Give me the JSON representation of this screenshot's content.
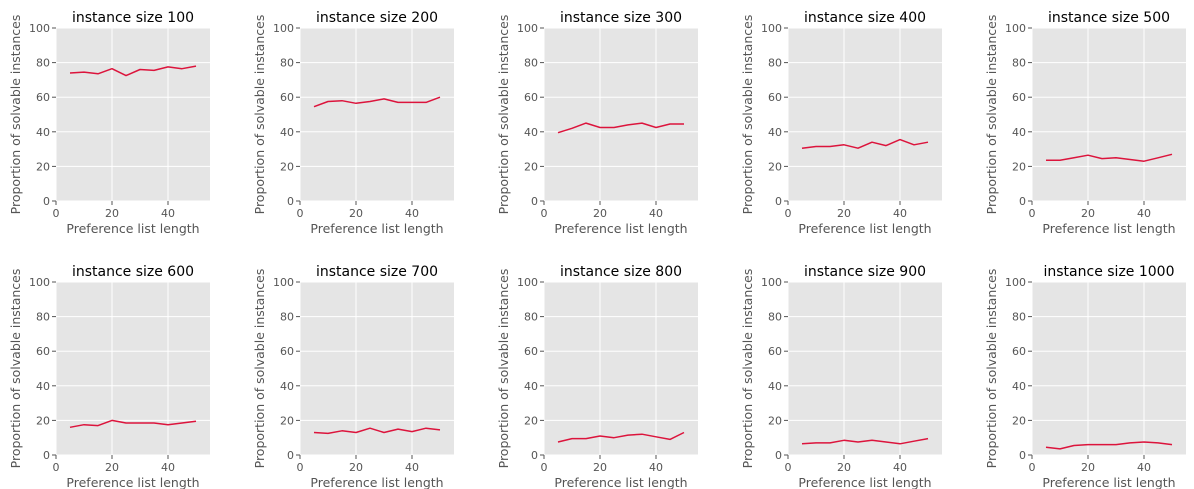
{
  "chart_data": [
    {
      "type": "line",
      "title": "instance size 100",
      "xlabel": "Preference list length",
      "ylabel": "Proportion of solvable instances",
      "xlim": [
        0,
        55
      ],
      "ylim": [
        0,
        100
      ],
      "xticks": [
        0,
        20,
        40
      ],
      "yticks": [
        0,
        20,
        40,
        60,
        80,
        100
      ],
      "grid": true,
      "color": "#dc143c",
      "x": [
        5,
        10,
        15,
        20,
        25,
        30,
        35,
        40,
        45,
        50
      ],
      "values": [
        74,
        74.5,
        73.5,
        76.5,
        72.5,
        76,
        75.5,
        77.5,
        76.5,
        78
      ]
    },
    {
      "type": "line",
      "title": "instance size 200",
      "xlabel": "Preference list length",
      "ylabel": "Proportion of solvable instances",
      "xlim": [
        0,
        55
      ],
      "ylim": [
        0,
        100
      ],
      "xticks": [
        0,
        20,
        40
      ],
      "yticks": [
        0,
        20,
        40,
        60,
        80,
        100
      ],
      "grid": true,
      "color": "#dc143c",
      "x": [
        5,
        10,
        15,
        20,
        25,
        30,
        35,
        40,
        45,
        50
      ],
      "values": [
        54.5,
        57.5,
        58,
        56.5,
        57.5,
        59,
        57,
        57,
        57,
        60
      ]
    },
    {
      "type": "line",
      "title": "instance size 300",
      "xlabel": "Preference list length",
      "ylabel": "Proportion of solvable instances",
      "xlim": [
        0,
        55
      ],
      "ylim": [
        0,
        100
      ],
      "xticks": [
        0,
        20,
        40
      ],
      "yticks": [
        0,
        20,
        40,
        60,
        80,
        100
      ],
      "grid": true,
      "color": "#dc143c",
      "x": [
        5,
        10,
        15,
        20,
        25,
        30,
        35,
        40,
        45,
        50
      ],
      "values": [
        39.5,
        42,
        45,
        42.5,
        42.5,
        44,
        45,
        42.5,
        44.5,
        44.5
      ]
    },
    {
      "type": "line",
      "title": "instance size 400",
      "xlabel": "Preference list length",
      "ylabel": "Proportion of solvable instances",
      "xlim": [
        0,
        55
      ],
      "ylim": [
        0,
        100
      ],
      "xticks": [
        0,
        20,
        40
      ],
      "yticks": [
        0,
        20,
        40,
        60,
        80,
        100
      ],
      "grid": true,
      "color": "#dc143c",
      "x": [
        5,
        10,
        15,
        20,
        25,
        30,
        35,
        40,
        45,
        50
      ],
      "values": [
        30.5,
        31.5,
        31.5,
        32.5,
        30.5,
        34,
        32,
        35.5,
        32.5,
        34
      ]
    },
    {
      "type": "line",
      "title": "instance size 500",
      "xlabel": "Preference list length",
      "ylabel": "Proportion of solvable instances",
      "xlim": [
        0,
        55
      ],
      "ylim": [
        0,
        100
      ],
      "xticks": [
        0,
        20,
        40
      ],
      "yticks": [
        0,
        20,
        40,
        60,
        80,
        100
      ],
      "grid": true,
      "color": "#dc143c",
      "x": [
        5,
        10,
        15,
        20,
        25,
        30,
        35,
        40,
        45,
        50
      ],
      "values": [
        23.5,
        23.5,
        25,
        26.5,
        24.5,
        25,
        24,
        23,
        25,
        27
      ]
    },
    {
      "type": "line",
      "title": "instance size 600",
      "xlabel": "Preference list length",
      "ylabel": "Proportion of solvable instances",
      "xlim": [
        0,
        55
      ],
      "ylim": [
        0,
        100
      ],
      "xticks": [
        0,
        20,
        40
      ],
      "yticks": [
        0,
        20,
        40,
        60,
        80,
        100
      ],
      "grid": true,
      "color": "#dc143c",
      "x": [
        5,
        10,
        15,
        20,
        25,
        30,
        35,
        40,
        45,
        50
      ],
      "values": [
        16,
        17.5,
        17,
        20,
        18.5,
        18.5,
        18.5,
        17.5,
        18.5,
        19.5
      ]
    },
    {
      "type": "line",
      "title": "instance size 700",
      "xlabel": "Preference list length",
      "ylabel": "Proportion of solvable instances",
      "xlim": [
        0,
        55
      ],
      "ylim": [
        0,
        100
      ],
      "xticks": [
        0,
        20,
        40
      ],
      "yticks": [
        0,
        20,
        40,
        60,
        80,
        100
      ],
      "grid": true,
      "color": "#dc143c",
      "x": [
        5,
        10,
        15,
        20,
        25,
        30,
        35,
        40,
        45,
        50
      ],
      "values": [
        13,
        12.5,
        14,
        13,
        15.5,
        13,
        15,
        13.5,
        15.5,
        14.5
      ]
    },
    {
      "type": "line",
      "title": "instance size 800",
      "xlabel": "Preference list length",
      "ylabel": "Proportion of solvable instances",
      "xlim": [
        0,
        55
      ],
      "ylim": [
        0,
        100
      ],
      "xticks": [
        0,
        20,
        40
      ],
      "yticks": [
        0,
        20,
        40,
        60,
        80,
        100
      ],
      "grid": true,
      "color": "#dc143c",
      "x": [
        5,
        10,
        15,
        20,
        25,
        30,
        35,
        40,
        45,
        50
      ],
      "values": [
        7.5,
        9.5,
        9.5,
        11,
        10,
        11.5,
        12,
        10.5,
        9,
        13
      ]
    },
    {
      "type": "line",
      "title": "instance size 900",
      "xlabel": "Preference list length",
      "ylabel": "Proportion of solvable instances",
      "xlim": [
        0,
        55
      ],
      "ylim": [
        0,
        100
      ],
      "xticks": [
        0,
        20,
        40
      ],
      "yticks": [
        0,
        20,
        40,
        60,
        80,
        100
      ],
      "grid": true,
      "color": "#dc143c",
      "x": [
        5,
        10,
        15,
        20,
        25,
        30,
        35,
        40,
        45,
        50
      ],
      "values": [
        6.5,
        7,
        7,
        8.5,
        7.5,
        8.5,
        7.5,
        6.5,
        8,
        9.5
      ]
    },
    {
      "type": "line",
      "title": "instance size 1000",
      "xlabel": "Preference list length",
      "ylabel": "Proportion of solvable instances",
      "xlim": [
        0,
        55
      ],
      "ylim": [
        0,
        100
      ],
      "xticks": [
        0,
        20,
        40
      ],
      "yticks": [
        0,
        20,
        40,
        60,
        80,
        100
      ],
      "grid": true,
      "color": "#dc143c",
      "x": [
        5,
        10,
        15,
        20,
        25,
        30,
        35,
        40,
        45,
        50
      ],
      "values": [
        4.5,
        3.5,
        5.5,
        6,
        6,
        6,
        7,
        7.5,
        7,
        6
      ]
    }
  ]
}
